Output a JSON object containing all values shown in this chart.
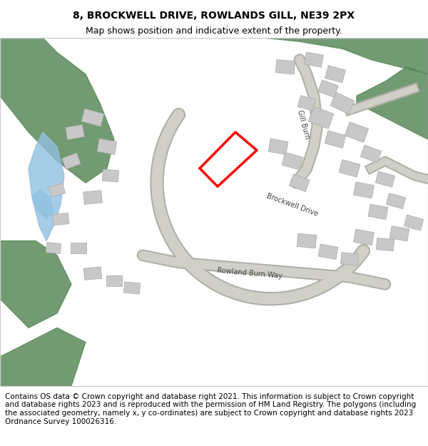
{
  "title_line1": "8, BROCKWELL DRIVE, ROWLANDS GILL, NE39 2PX",
  "title_line2": "Map shows position and indicative extent of the property.",
  "footer_text": "Contains OS data © Crown copyright and database right 2021. This information is subject to Crown copyright and database rights 2023 and is reproduced with the permission of HM Land Registry. The polygons (including the associated geometry, namely x, y co-ordinates) are subject to Crown copyright and database rights 2023 Ordnance Survey 100026316.",
  "title_fontsize": 10,
  "subtitle_fontsize": 9,
  "footer_fontsize": 7.5,
  "bg_color": "#ffffff",
  "map_bg": "#f8f8f5",
  "figure_width": 6.0,
  "figure_height": 6.25,
  "dpi": 100
}
